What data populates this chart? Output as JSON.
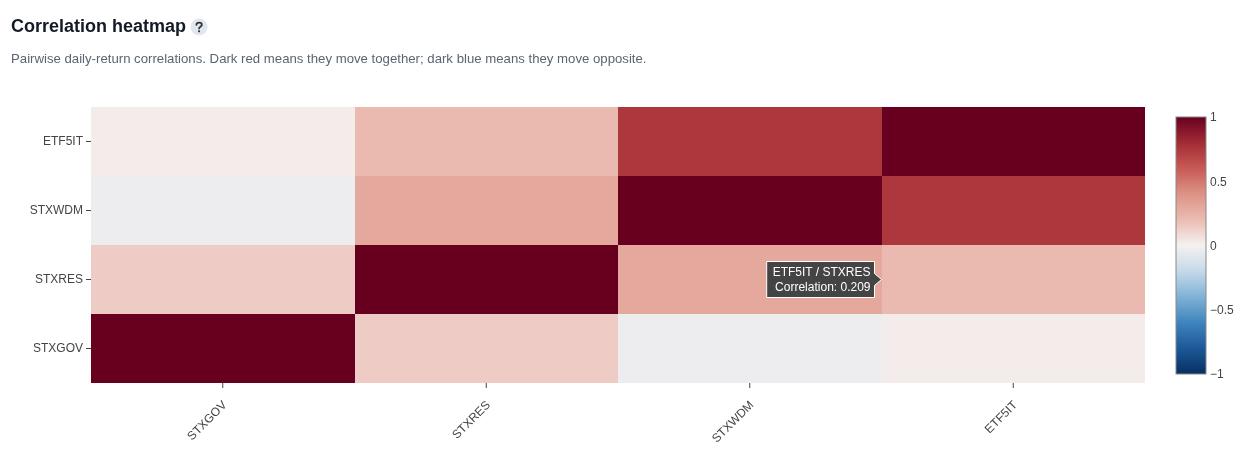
{
  "chart_data": {
    "type": "heatmap",
    "title": "Correlation heatmap",
    "subtitle": "Pairwise daily-return correlations. Dark red means they move together; dark blue means they move opposite.",
    "categories": [
      "STXGOV",
      "STXRES",
      "STXWDM",
      "ETF5IT"
    ],
    "y_categories": [
      "ETF5IT",
      "STXWDM",
      "STXRES",
      "STXGOV"
    ],
    "cells": [
      [
        0.02,
        0.209,
        0.75,
        1
      ],
      [
        -0.03,
        0.3,
        1,
        0.75
      ],
      [
        0.14,
        1,
        0.3,
        0.209
      ],
      [
        1,
        0.14,
        -0.03,
        0.02
      ]
    ],
    "clim": [
      -1,
      1
    ],
    "cticks": [
      1,
      0.5,
      0,
      {
        "value": -0.5,
        "label": "−0.5"
      },
      {
        "value": -1,
        "label": "−1"
      }
    ],
    "annotations": [
      "ETF5IT / STXRES\nCorrelation: 0.209"
    ]
  }
}
